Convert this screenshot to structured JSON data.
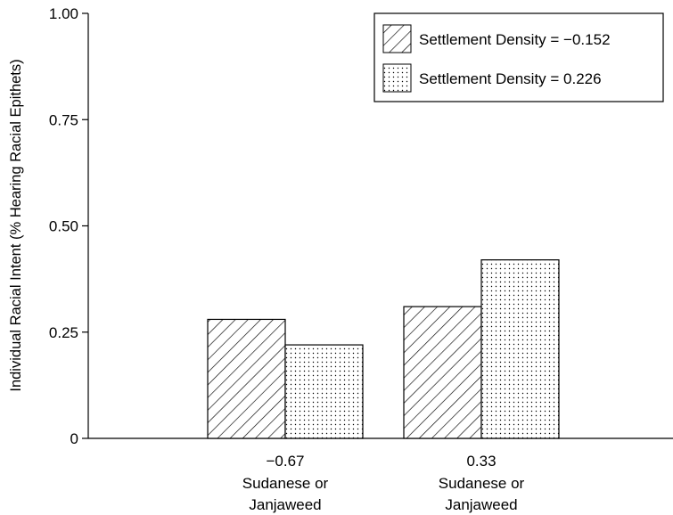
{
  "chart_data": {
    "type": "bar",
    "title": "",
    "xlabel": "",
    "ylabel": "Individual Racial Intent (% Hearing Racial Epithets)",
    "ylim": [
      0,
      1.0
    ],
    "yticks": [
      {
        "value": 0,
        "label": "0"
      },
      {
        "value": 0.25,
        "label": "0.25"
      },
      {
        "value": 0.5,
        "label": "0.50"
      },
      {
        "value": 0.75,
        "label": "0.75"
      },
      {
        "value": 1.0,
        "label": "1.00"
      }
    ],
    "categories": [
      {
        "line1": "−0.67",
        "line2": "Sudanese or",
        "line3": "Janjaweed"
      },
      {
        "line1": "0.33",
        "line2": "Sudanese or",
        "line3": "Janjaweed"
      }
    ],
    "series": [
      {
        "name": "Settlement Density = −0.152",
        "pattern": "hatch",
        "values": [
          0.28,
          0.31
        ]
      },
      {
        "name": "Settlement Density = 0.226",
        "pattern": "dots",
        "values": [
          0.22,
          0.42
        ]
      }
    ],
    "grid": false,
    "legend_position": "top-right",
    "colors": {
      "ink": "#000000",
      "background": "#ffffff"
    }
  }
}
